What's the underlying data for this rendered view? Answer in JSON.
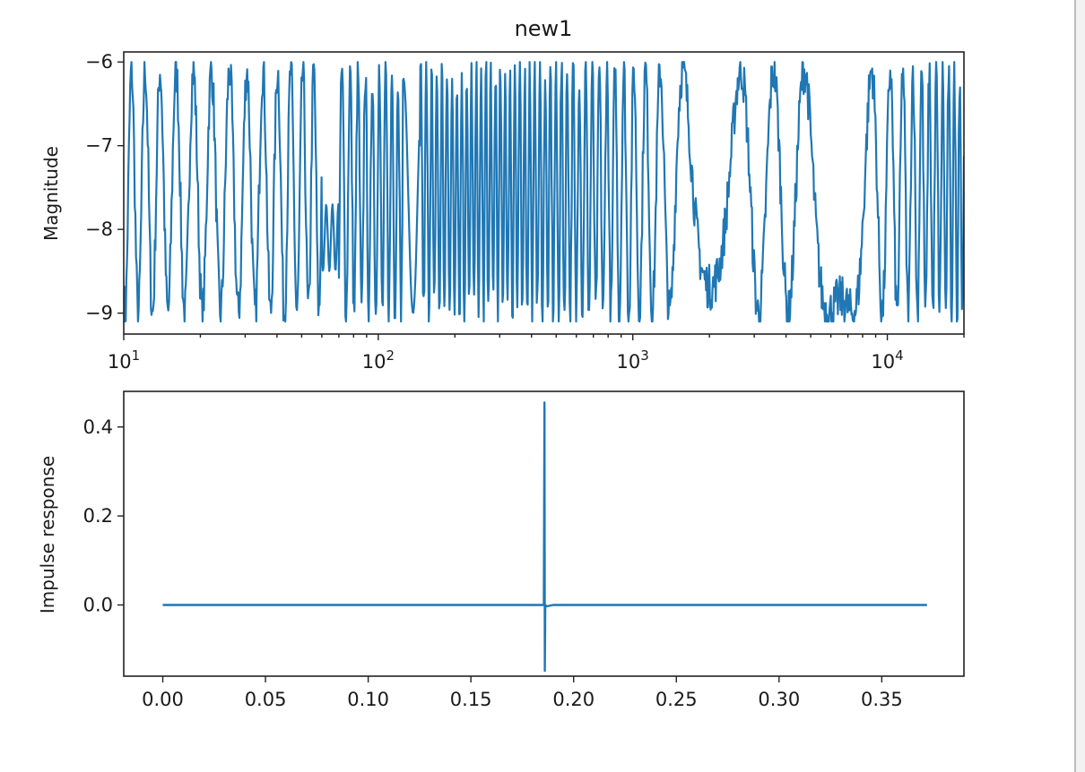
{
  "chart_data": [
    {
      "type": "line",
      "title": "new1",
      "xlabel": "",
      "ylabel": "Magnitude",
      "x_scale": "log",
      "xlim": [
        10,
        20000
      ],
      "ylim": [
        -9.25,
        -5.88
      ],
      "x_ticks": [
        10,
        100,
        1000,
        10000
      ],
      "x_tick_labels": [
        {
          "base": "10",
          "exp": "1"
        },
        {
          "base": "10",
          "exp": "2"
        },
        {
          "base": "10",
          "exp": "3"
        },
        {
          "base": "10",
          "exp": "4"
        }
      ],
      "y_ticks": [
        -6,
        -7,
        -8,
        -9
      ],
      "y_tick_labels": [
        "−6",
        "−7",
        "−8",
        "−9"
      ],
      "grid": false,
      "color": "#1f77b4",
      "series": [
        {
          "x_range": [
            10,
            20000
          ],
          "y_min": -9.1,
          "y_max": -6.0,
          "description_of_shape": "dense oscillation between about -9 and -6 across the whole log frequency range"
        }
      ]
    },
    {
      "type": "line",
      "title": "",
      "xlabel": "",
      "ylabel": "Impulse response",
      "xlim": [
        -0.019,
        0.39
      ],
      "ylim": [
        -0.16,
        0.48
      ],
      "x_ticks": [
        0.0,
        0.05,
        0.1,
        0.15,
        0.2,
        0.25,
        0.3,
        0.35
      ],
      "x_tick_labels": [
        "0.00",
        "0.05",
        "0.10",
        "0.15",
        "0.20",
        "0.25",
        "0.30",
        "0.35"
      ],
      "y_ticks": [
        0.4,
        0.2,
        0.0
      ],
      "y_tick_labels": [
        "0.4",
        "0.2",
        "0.0"
      ],
      "grid": false,
      "color": "#1f77b4",
      "series": [
        {
          "x": [
            0.0,
            0.184,
            0.1855,
            0.1858,
            0.186,
            0.1862,
            0.187,
            0.19,
            0.372
          ],
          "y": [
            0.0,
            0.0,
            0.0,
            0.455,
            -0.148,
            0.0,
            -0.003,
            0.0,
            0.0
          ]
        }
      ]
    }
  ]
}
